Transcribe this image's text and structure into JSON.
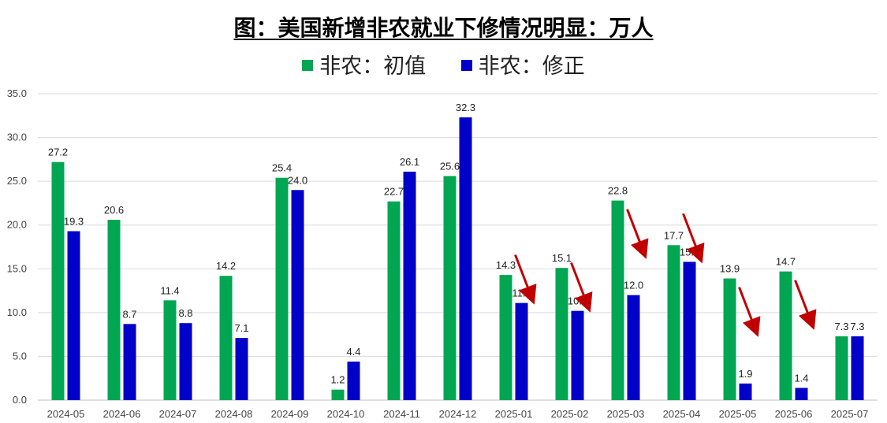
{
  "chart_data": {
    "type": "bar",
    "title": "图：美国新增非农就业下修情况明显：万人",
    "categories": [
      "2024-05",
      "2024-06",
      "2024-07",
      "2024-08",
      "2024-09",
      "2024-10",
      "2024-11",
      "2024-12",
      "2025-01",
      "2025-02",
      "2025-03",
      "2025-04",
      "2025-05",
      "2025-06",
      "2025-07"
    ],
    "series": [
      {
        "name": "非农：初值",
        "color": "#00A651",
        "values": [
          27.2,
          20.6,
          11.4,
          14.2,
          25.4,
          1.2,
          22.7,
          25.6,
          14.3,
          15.1,
          22.8,
          17.7,
          13.9,
          14.7,
          7.3
        ]
      },
      {
        "name": "非农：修正",
        "color": "#0000C8",
        "values": [
          19.3,
          8.7,
          8.8,
          7.1,
          24.0,
          4.4,
          26.1,
          32.3,
          11.1,
          10.2,
          12.0,
          15.8,
          1.9,
          1.4,
          7.3
        ]
      }
    ],
    "ylim": [
      0,
      35
    ],
    "yticks": [
      0,
      5,
      10,
      15,
      20,
      25,
      30,
      35
    ],
    "grid": true,
    "legend_position": "top",
    "annotations": {
      "type": "arrow",
      "color": "#C00000",
      "categories": [
        "2025-01",
        "2025-02",
        "2025-03",
        "2025-04",
        "2025-05",
        "2025-06"
      ]
    }
  }
}
